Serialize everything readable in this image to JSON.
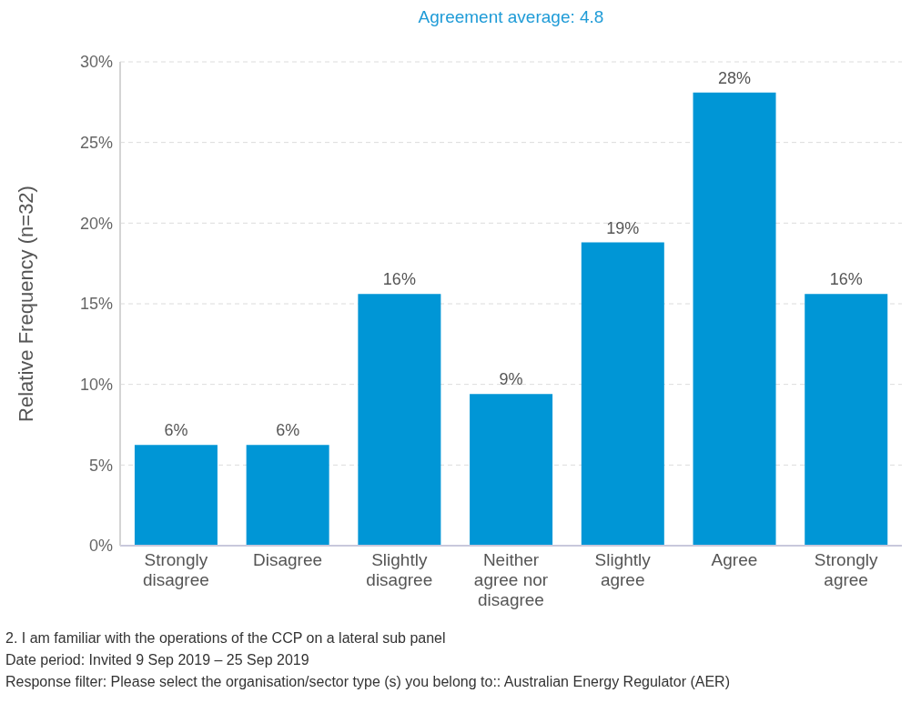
{
  "chart_data": {
    "type": "bar",
    "title": "Agreement average: 4.8",
    "ylabel": "Relative Frequency (n=32)",
    "categories": [
      "Strongly disagree",
      "Disagree",
      "Slightly disagree",
      "Neither agree nor disagree",
      "Slightly agree",
      "Agree",
      "Strongly agree"
    ],
    "values": [
      6.25,
      6.25,
      15.6,
      9.4,
      18.8,
      28.1,
      15.6
    ],
    "value_labels": [
      "6%",
      "6%",
      "16%",
      "9%",
      "19%",
      "28%",
      "16%"
    ],
    "color": "#0096d6",
    "ylim": [
      0,
      30
    ],
    "yticks": [
      {
        "value": 0,
        "label": "0%"
      },
      {
        "value": 5,
        "label": "5%"
      },
      {
        "value": 10,
        "label": "10%"
      },
      {
        "value": 15,
        "label": "15%"
      },
      {
        "value": 20,
        "label": "20%"
      },
      {
        "value": 25,
        "label": "25%"
      },
      {
        "value": 30,
        "label": "30%"
      }
    ],
    "grid": "y",
    "annotations": [
      "2. I am familiar with the operations of the CCP on a lateral sub panel",
      "Date period: Invited 9 Sep 2019 – 25 Sep 2019",
      "Response filter: Please select the organisation/sector type (s) you belong to:: Australian Energy Regulator (AER)"
    ]
  }
}
